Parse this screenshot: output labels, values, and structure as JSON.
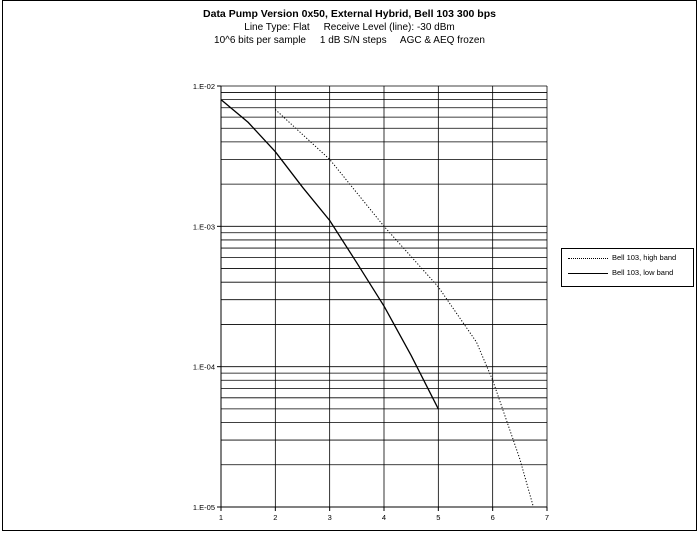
{
  "titles": {
    "line1": "Data Pump Version 0x50, External Hybrid, Bell 103 300 bps",
    "line2": "Line Type: Flat     Receive Level (line): -30 dBm",
    "line3": "10^6 bits per sample     1 dB S/N steps     AGC & AEQ frozen"
  },
  "chart_data": {
    "type": "line",
    "title": "Data Pump Version 0x50, External Hybrid, Bell 103 300 bps",
    "xlabel": "",
    "ylabel": "",
    "xlim": [
      1,
      7
    ],
    "ylim": [
      1e-05,
      0.01
    ],
    "y_scale": "log",
    "grid": true,
    "legend_position": "right",
    "x_ticks": [
      "1",
      "2",
      "3",
      "4",
      "5",
      "6",
      "7"
    ],
    "y_ticks": [
      "1.E-02",
      "1.E-03",
      "1.E-04",
      "1.E-05"
    ],
    "series": [
      {
        "name": "Bell 103, high band",
        "style": "dotted",
        "x": [
          2,
          3,
          4,
          5,
          5.7,
          6,
          6.5,
          6.75
        ],
        "y": [
          0.0068,
          0.003,
          0.001,
          0.00037,
          0.00015,
          8e-05,
          2.2e-05,
          1e-05
        ]
      },
      {
        "name": "Bell 103, low band",
        "style": "solid",
        "x": [
          1,
          1.5,
          2,
          2.5,
          3,
          3.5,
          4,
          4.5,
          5
        ],
        "y": [
          0.008,
          0.0055,
          0.0034,
          0.0019,
          0.0011,
          0.00055,
          0.00027,
          0.00012,
          5e-05
        ]
      }
    ]
  }
}
